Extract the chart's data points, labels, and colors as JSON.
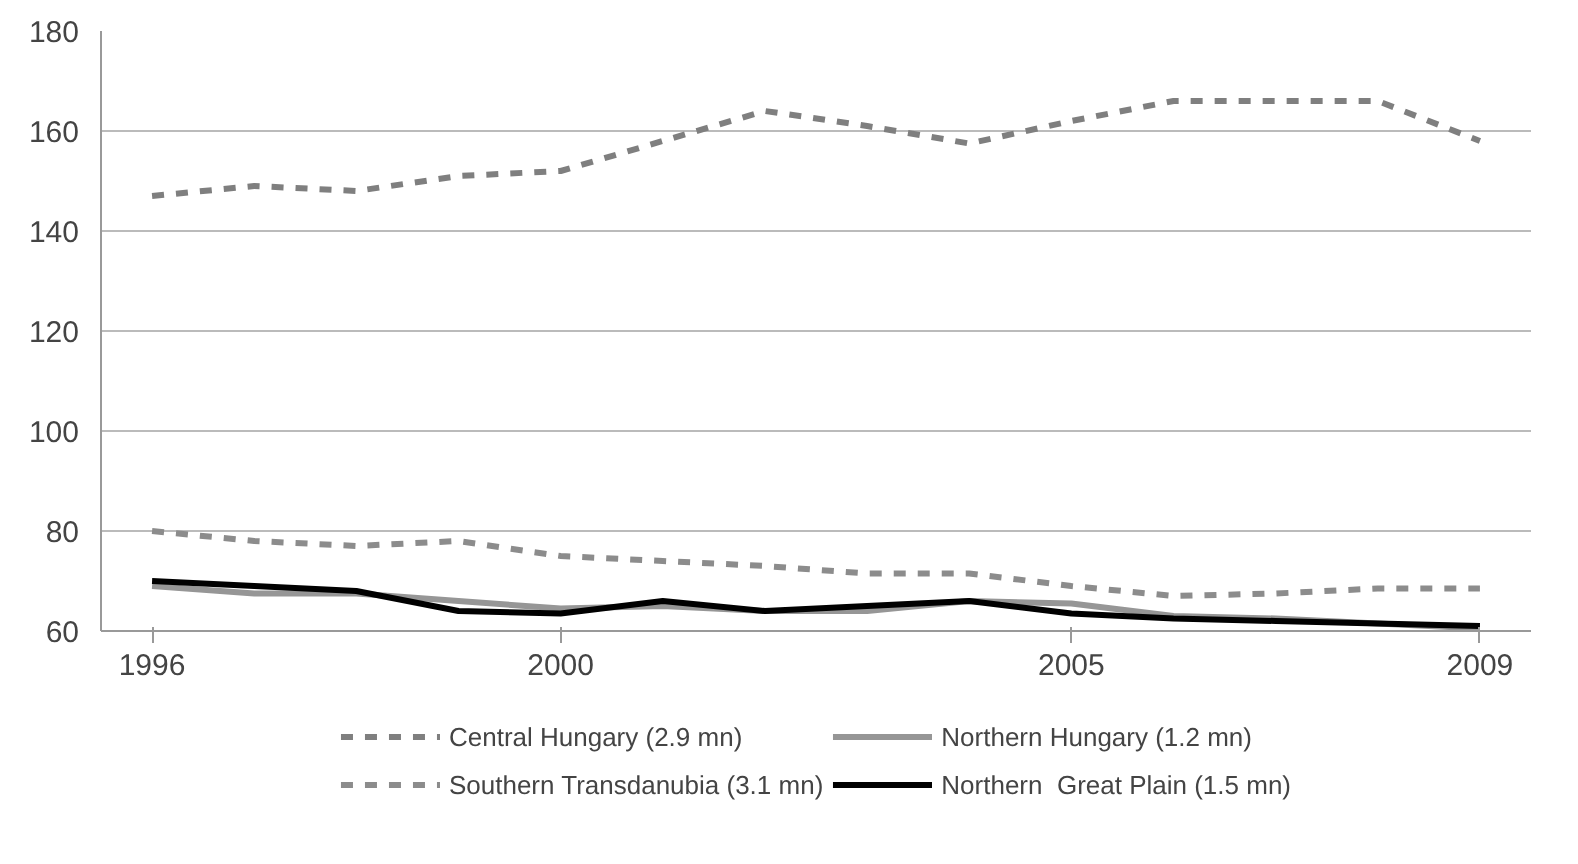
{
  "chart_data": {
    "type": "line",
    "x": [
      1996,
      1997,
      1998,
      1999,
      2000,
      2001,
      2002,
      2003,
      2004,
      2005,
      2006,
      2007,
      2008,
      2009
    ],
    "xlim": [
      1995.5,
      2009.5
    ],
    "xticks": [
      1996,
      2000,
      2005,
      2009
    ],
    "ylim": [
      60,
      180
    ],
    "yticks": [
      60,
      80,
      100,
      120,
      140,
      160,
      180
    ],
    "grid": "y",
    "legend": "bottom",
    "series": [
      {
        "name": "Central Hungary (2.9 mn)",
        "color": "#7f7f7f",
        "line_style": "dashed",
        "values": [
          147,
          149,
          148,
          151,
          152,
          158,
          164,
          161,
          157.5,
          162,
          166,
          166,
          166,
          158
        ]
      },
      {
        "name": "Southern Transdanubia (3.1 mn)",
        "color": "#8c8c8c",
        "line_style": "dashed",
        "values": [
          80,
          78,
          77,
          78,
          75,
          74,
          73,
          71.5,
          71.5,
          69,
          67,
          67.5,
          68.5,
          68.5
        ]
      },
      {
        "name": "Northern Hungary (1.2 mn)",
        "color": "#969696",
        "line_style": "solid",
        "values": [
          69,
          67.5,
          67.5,
          66,
          64.5,
          65,
          64,
          64,
          66,
          65.5,
          63,
          62.5,
          61.5,
          60.5
        ]
      },
      {
        "name": "Northern  Great Plain (1.5 mn)",
        "color": "#000000",
        "line_style": "solid",
        "values": [
          70,
          69,
          68,
          64,
          63.5,
          66,
          64,
          65,
          66,
          63.5,
          62.5,
          62,
          61.5,
          61
        ]
      }
    ]
  }
}
